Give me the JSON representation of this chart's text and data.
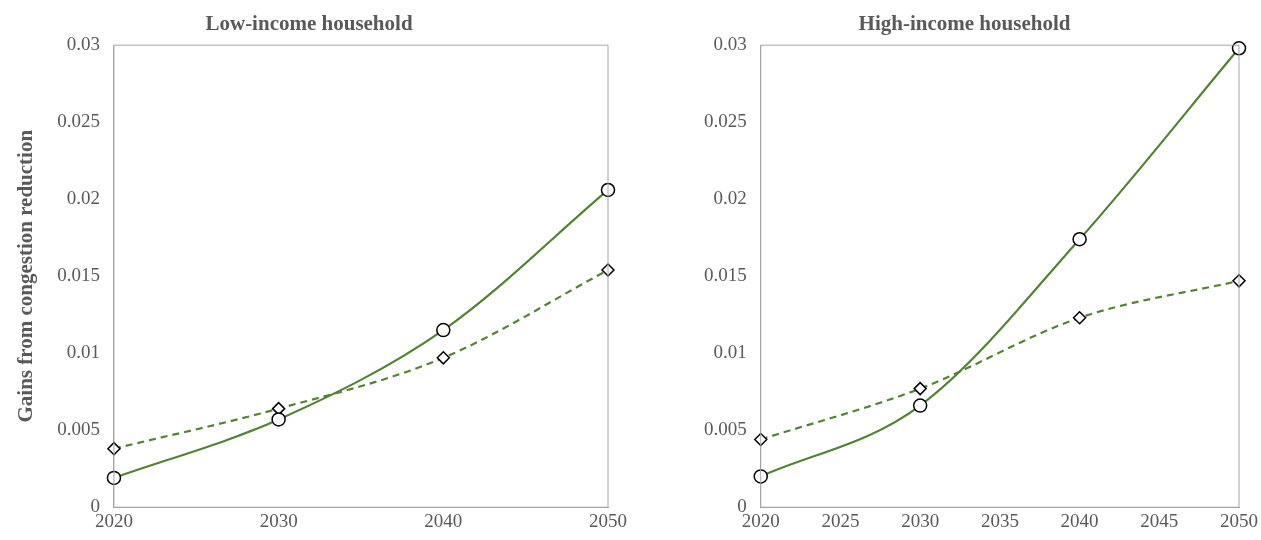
{
  "chart_data": [
    {
      "type": "line",
      "title": "Low-income household",
      "ylabel": "Gains from congestion reduction",
      "xlim": [
        2020,
        2050
      ],
      "xticks": [
        2020,
        2030,
        2040,
        2050
      ],
      "ylim": [
        0,
        0.03
      ],
      "yticks": [
        0,
        0.005,
        0.01,
        0.015,
        0.02,
        0.025,
        0.03
      ],
      "grid": false,
      "legend": false,
      "series": [
        {
          "color": "#548235",
          "marker": "circle",
          "line_style": "solid",
          "x": [
            2020,
            2030,
            2040,
            2050
          ],
          "values": [
            0.0019,
            0.0057,
            0.0115,
            0.0206
          ]
        },
        {
          "color": "#548235",
          "marker": "diamond",
          "line_style": "dashed",
          "x": [
            2020,
            2030,
            2040,
            2050
          ],
          "values": [
            0.0038,
            0.0064,
            0.0097,
            0.0154
          ]
        }
      ]
    },
    {
      "type": "line",
      "title": "High-income household",
      "xlim": [
        2020,
        2050
      ],
      "xticks": [
        2020,
        2025,
        2030,
        2035,
        2040,
        2045,
        2050
      ],
      "ylim": [
        0,
        0.03
      ],
      "yticks": [
        0,
        0.005,
        0.01,
        0.015,
        0.02,
        0.025,
        0.03
      ],
      "grid": false,
      "legend": false,
      "series": [
        {
          "color": "#548235",
          "marker": "circle",
          "line_style": "solid",
          "x": [
            2020,
            2030,
            2040,
            2050
          ],
          "values": [
            0.002,
            0.0066,
            0.0174,
            0.0298
          ]
        },
        {
          "color": "#548235",
          "marker": "diamond",
          "line_style": "dashed",
          "x": [
            2020,
            2030,
            2040,
            2050
          ],
          "values": [
            0.0044,
            0.0077,
            0.0123,
            0.0147
          ]
        }
      ]
    }
  ]
}
